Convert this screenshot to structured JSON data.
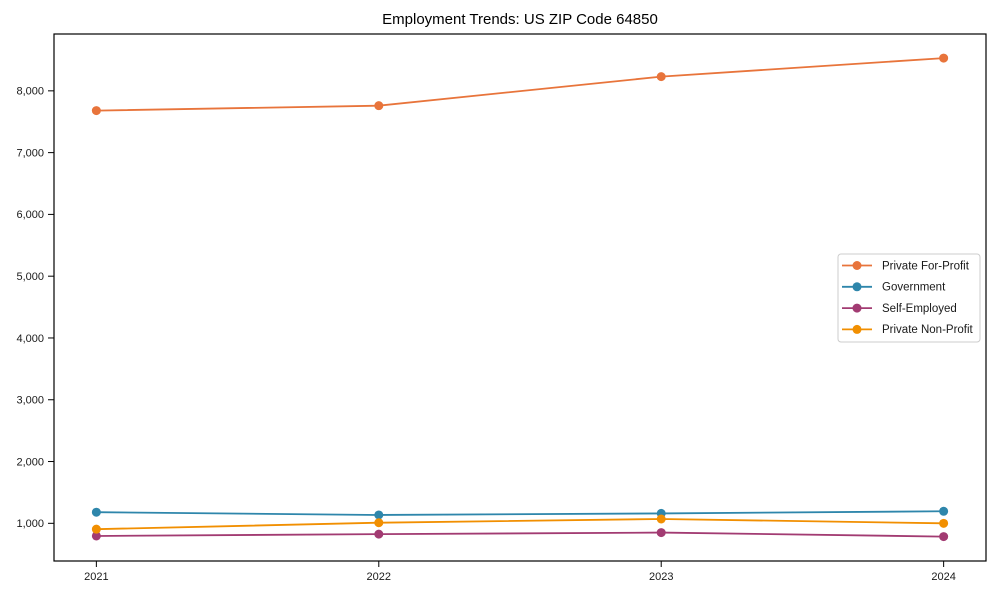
{
  "chart_data": {
    "type": "line",
    "title": "Employment Trends: US ZIP Code 64850",
    "xlabel": "",
    "ylabel": "",
    "x": [
      "2021",
      "2022",
      "2023",
      "2024"
    ],
    "series": [
      {
        "name": "Private For-Profit",
        "color": "#E8743B",
        "values": [
          7680,
          7760,
          8230,
          8530
        ]
      },
      {
        "name": "Government",
        "color": "#2E86AB",
        "values": [
          1180,
          1135,
          1160,
          1195
        ]
      },
      {
        "name": "Self-Employed",
        "color": "#A23B72",
        "values": [
          795,
          825,
          850,
          785
        ]
      },
      {
        "name": "Private Non-Profit",
        "color": "#F18F01",
        "values": [
          905,
          1010,
          1070,
          1000
        ]
      }
    ],
    "ytick_values": [
      1000,
      2000,
      3000,
      4000,
      5000,
      6000,
      7000,
      8000
    ],
    "ytick_labels": [
      "1,000",
      "2,000",
      "3,000",
      "4,000",
      "5,000",
      "6,000",
      "7,000",
      "8,000"
    ],
    "ylim": [
      390,
      8920
    ],
    "xlim": [
      2020.85,
      2024.15
    ],
    "grid": false,
    "legend_position": "center right",
    "axis_color": "#000000",
    "tick_label_color": "#1a1a1a",
    "legend_border_color": "#cccccc",
    "background_color": "#ffffff"
  }
}
